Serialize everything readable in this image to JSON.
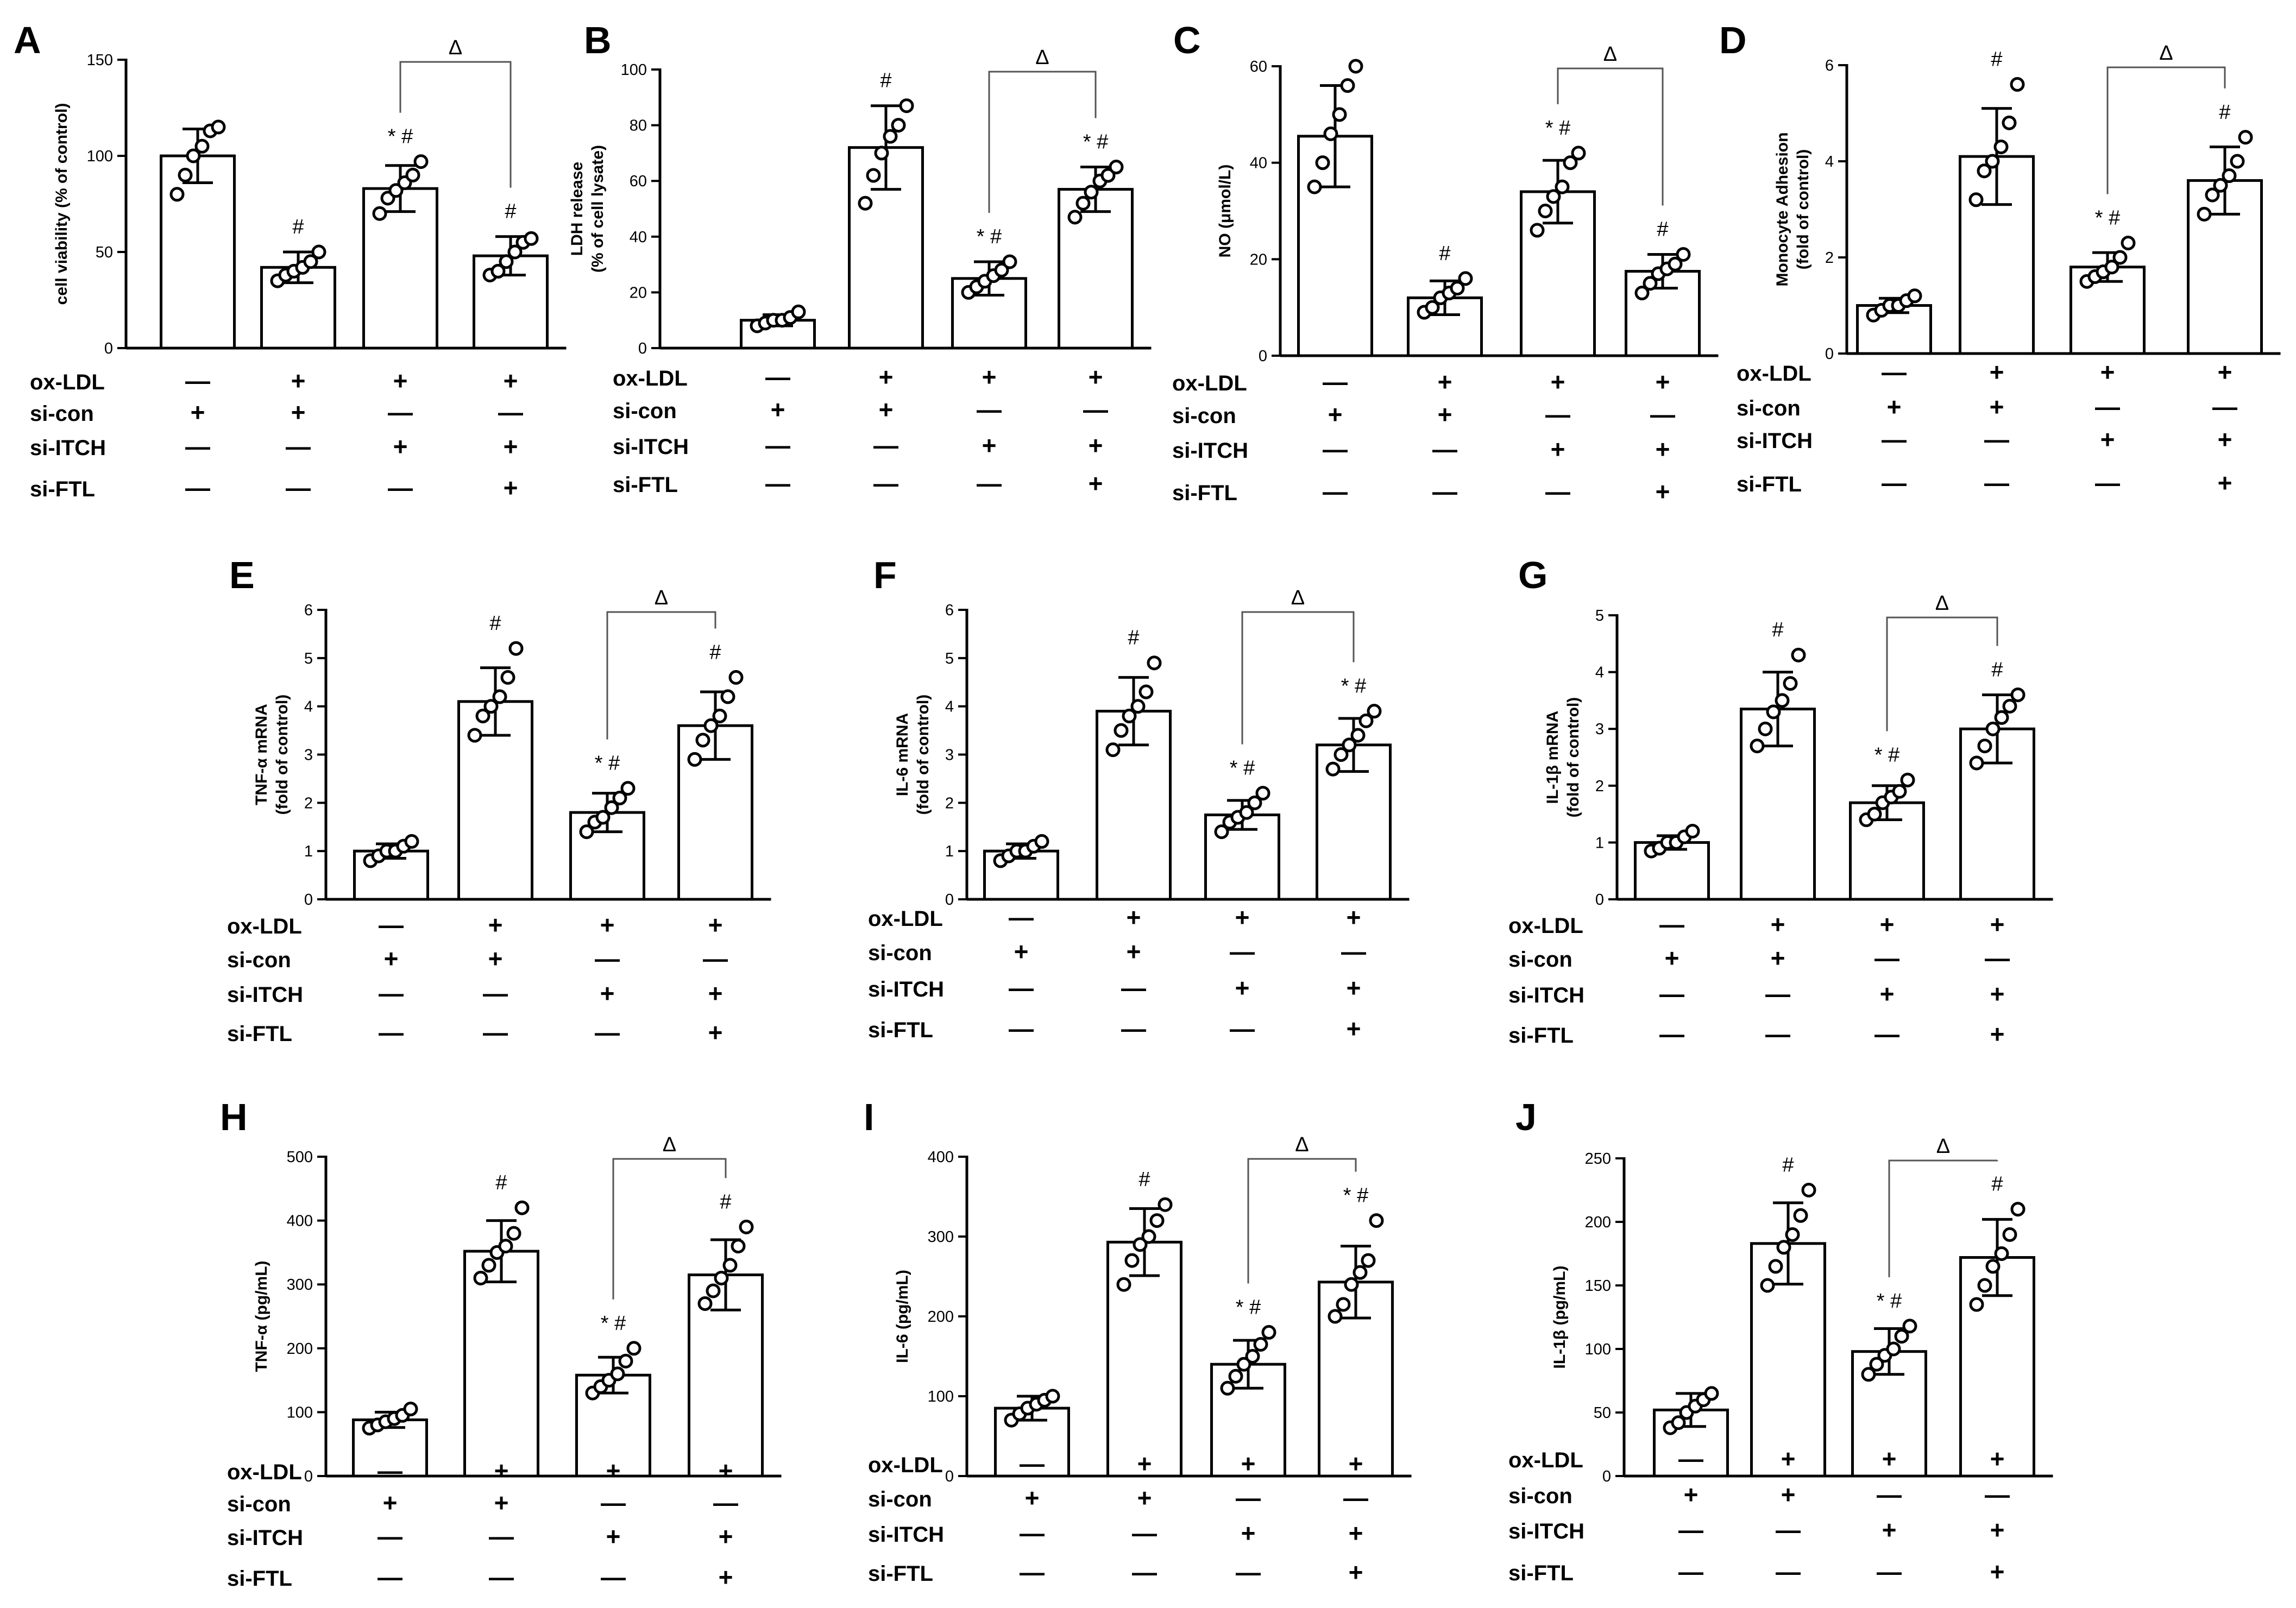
{
  "condition_labels": [
    "ox-LDL",
    "si-con",
    "si-ITCH",
    "si-FTL"
  ],
  "condition_symbols": {
    "plus": "+",
    "minus": "—"
  },
  "conditions": [
    [
      "—",
      "+",
      "—",
      "—"
    ],
    [
      "+",
      "+",
      "—",
      "—"
    ],
    [
      "+",
      "—",
      "+",
      "—"
    ],
    [
      "+",
      "—",
      "+",
      "+"
    ]
  ],
  "chart_data": [
    {
      "panel": "A",
      "type": "bar",
      "ylabel": "cell viability (% of control)",
      "ylim": [
        0,
        150
      ],
      "yticks": [
        0,
        50,
        100,
        150
      ],
      "values": [
        100,
        42,
        83,
        48
      ],
      "errors": [
        14,
        8,
        12,
        10
      ],
      "points": [
        [
          80,
          90,
          100,
          105,
          113,
          115
        ],
        [
          35,
          38,
          40,
          42,
          45,
          50
        ],
        [
          70,
          78,
          82,
          86,
          90,
          97
        ],
        [
          38,
          40,
          45,
          50,
          55,
          57
        ]
      ],
      "markers": [
        "",
        "#",
        "* #",
        "#"
      ],
      "bracket": {
        "from": 2,
        "to": 3,
        "label": "Δ"
      }
    },
    {
      "panel": "B",
      "type": "bar",
      "ylabel": "LDH release (% of cell lysate)",
      "ylim": [
        0,
        100
      ],
      "yticks": [
        0,
        20,
        40,
        60,
        80,
        100
      ],
      "values": [
        10,
        72,
        25,
        57
      ],
      "errors": [
        2,
        15,
        6,
        8
      ],
      "points": [
        [
          8,
          9,
          10,
          10,
          11,
          13
        ],
        [
          52,
          62,
          70,
          76,
          80,
          87
        ],
        [
          20,
          22,
          24,
          26,
          28,
          31
        ],
        [
          47,
          52,
          56,
          60,
          62,
          65
        ]
      ],
      "markers": [
        "",
        "#",
        "* #",
        "* #"
      ],
      "bracket": {
        "from": 2,
        "to": 3,
        "label": "Δ"
      }
    },
    {
      "panel": "C",
      "type": "bar",
      "ylabel": "NO (μmol/L)",
      "ylim": [
        0,
        60
      ],
      "yticks": [
        0,
        20,
        40,
        60
      ],
      "values": [
        45.5,
        12,
        34,
        17.5
      ],
      "errors": [
        10.5,
        3.5,
        6.5,
        3.5
      ],
      "points": [
        [
          35,
          40,
          46,
          50,
          56,
          60
        ],
        [
          9,
          10,
          12,
          13,
          14,
          16
        ],
        [
          26,
          30,
          33,
          35,
          40,
          42
        ],
        [
          13,
          15,
          17,
          18,
          19,
          21
        ]
      ],
      "markers": [
        "",
        "#",
        "* #",
        "#"
      ],
      "bracket": {
        "from": 2,
        "to": 3,
        "label": "Δ"
      }
    },
    {
      "panel": "D",
      "type": "bar",
      "ylabel": "Monocyte Adhesion (fold of control)",
      "ylim": [
        0,
        6
      ],
      "yticks": [
        0,
        2,
        4,
        6
      ],
      "values": [
        1,
        4.1,
        1.8,
        3.6
      ],
      "errors": [
        0.15,
        1,
        0.3,
        0.7
      ],
      "points": [
        [
          0.8,
          0.9,
          1.0,
          1.0,
          1.1,
          1.2
        ],
        [
          3.2,
          3.8,
          4.0,
          4.3,
          4.8,
          5.6
        ],
        [
          1.5,
          1.6,
          1.7,
          1.8,
          2.0,
          2.3
        ],
        [
          2.9,
          3.3,
          3.5,
          3.7,
          4.0,
          4.5
        ]
      ],
      "markers": [
        "",
        "#",
        "* #",
        "#"
      ],
      "bracket": {
        "from": 2,
        "to": 3,
        "label": "Δ"
      }
    },
    {
      "panel": "E",
      "type": "bar",
      "ylabel": "TNF-α mRNA (fold of control)",
      "ylim": [
        0,
        6
      ],
      "yticks": [
        0,
        1,
        2,
        3,
        4,
        5,
        6
      ],
      "values": [
        1,
        4.1,
        1.8,
        3.6
      ],
      "errors": [
        0.15,
        0.7,
        0.4,
        0.7
      ],
      "points": [
        [
          0.8,
          0.9,
          1.0,
          1.0,
          1.1,
          1.2
        ],
        [
          3.4,
          3.8,
          4.0,
          4.2,
          4.6,
          5.2
        ],
        [
          1.4,
          1.6,
          1.7,
          1.9,
          2.1,
          2.3
        ],
        [
          2.9,
          3.3,
          3.6,
          3.8,
          4.2,
          4.6
        ]
      ],
      "markers": [
        "",
        "#",
        "* #",
        "#"
      ],
      "bracket": {
        "from": 2,
        "to": 3,
        "label": "Δ"
      }
    },
    {
      "panel": "F",
      "type": "bar",
      "ylabel": "IL-6 mRNA (fold of control)",
      "ylim": [
        0,
        6
      ],
      "yticks": [
        0,
        1,
        2,
        3,
        4,
        5,
        6
      ],
      "values": [
        1,
        3.9,
        1.75,
        3.2
      ],
      "errors": [
        0.15,
        0.7,
        0.3,
        0.55
      ],
      "points": [
        [
          0.8,
          0.9,
          1.0,
          1.0,
          1.1,
          1.2
        ],
        [
          3.1,
          3.5,
          3.8,
          4.0,
          4.3,
          4.9
        ],
        [
          1.4,
          1.6,
          1.7,
          1.8,
          2.0,
          2.2
        ],
        [
          2.7,
          3.0,
          3.2,
          3.4,
          3.7,
          3.9
        ]
      ],
      "markers": [
        "",
        "#",
        "* #",
        "* #"
      ],
      "bracket": {
        "from": 2,
        "to": 3,
        "label": "Δ"
      }
    },
    {
      "panel": "G",
      "type": "bar",
      "ylabel": "IL-1β mRNA (fold of control)",
      "ylim": [
        0,
        5
      ],
      "yticks": [
        0,
        1,
        2,
        3,
        4,
        5
      ],
      "values": [
        1,
        3.35,
        1.7,
        3.0
      ],
      "errors": [
        0.12,
        0.65,
        0.3,
        0.6
      ],
      "points": [
        [
          0.85,
          0.9,
          1.0,
          1.0,
          1.1,
          1.2
        ],
        [
          2.7,
          3.0,
          3.3,
          3.5,
          3.8,
          4.3
        ],
        [
          1.4,
          1.5,
          1.7,
          1.8,
          1.9,
          2.1
        ],
        [
          2.4,
          2.7,
          3.0,
          3.2,
          3.4,
          3.6
        ]
      ],
      "markers": [
        "",
        "#",
        "* #",
        "#"
      ],
      "bracket": {
        "from": 2,
        "to": 3,
        "label": "Δ"
      }
    },
    {
      "panel": "H",
      "type": "bar",
      "ylabel": "TNF-α (pg/mL)",
      "ylim": [
        0,
        500
      ],
      "yticks": [
        0,
        100,
        200,
        300,
        400,
        500
      ],
      "values": [
        88,
        352,
        158,
        315
      ],
      "errors": [
        12,
        48,
        28,
        55
      ],
      "points": [
        [
          75,
          80,
          85,
          90,
          95,
          105
        ],
        [
          310,
          330,
          350,
          360,
          380,
          420
        ],
        [
          130,
          140,
          150,
          160,
          180,
          200
        ],
        [
          270,
          290,
          310,
          330,
          360,
          390
        ]
      ],
      "markers": [
        "",
        "#",
        "* #",
        "#"
      ],
      "bracket": {
        "from": 2,
        "to": 3,
        "label": "Δ"
      }
    },
    {
      "panel": "I",
      "type": "bar",
      "ylabel": "IL-6 (pg/mL)",
      "ylim": [
        0,
        400
      ],
      "yticks": [
        0,
        100,
        200,
        300,
        400
      ],
      "values": [
        85,
        293,
        140,
        243
      ],
      "errors": [
        15,
        42,
        30,
        45
      ],
      "points": [
        [
          70,
          78,
          85,
          90,
          95,
          100
        ],
        [
          240,
          270,
          290,
          300,
          320,
          340
        ],
        [
          110,
          125,
          140,
          150,
          165,
          180
        ],
        [
          200,
          215,
          240,
          255,
          270,
          320
        ]
      ],
      "markers": [
        "",
        "#",
        "* #",
        "* #"
      ],
      "bracket": {
        "from": 2,
        "to": 3,
        "label": "Δ"
      }
    },
    {
      "panel": "J",
      "type": "bar",
      "ylabel": "IL-1β (pg/mL)",
      "ylim": [
        0,
        250
      ],
      "yticks": [
        0,
        50,
        100,
        150,
        200,
        250
      ],
      "values": [
        52,
        183,
        98,
        172
      ],
      "errors": [
        13,
        32,
        18,
        30
      ],
      "points": [
        [
          38,
          42,
          50,
          55,
          60,
          65
        ],
        [
          150,
          165,
          180,
          190,
          205,
          225
        ],
        [
          80,
          88,
          95,
          100,
          110,
          118
        ],
        [
          135,
          150,
          165,
          175,
          190,
          210
        ]
      ],
      "markers": [
        "",
        "#",
        "* #",
        "#"
      ],
      "bracket": {
        "from": 2,
        "to": 3,
        "label": "Δ"
      }
    }
  ]
}
